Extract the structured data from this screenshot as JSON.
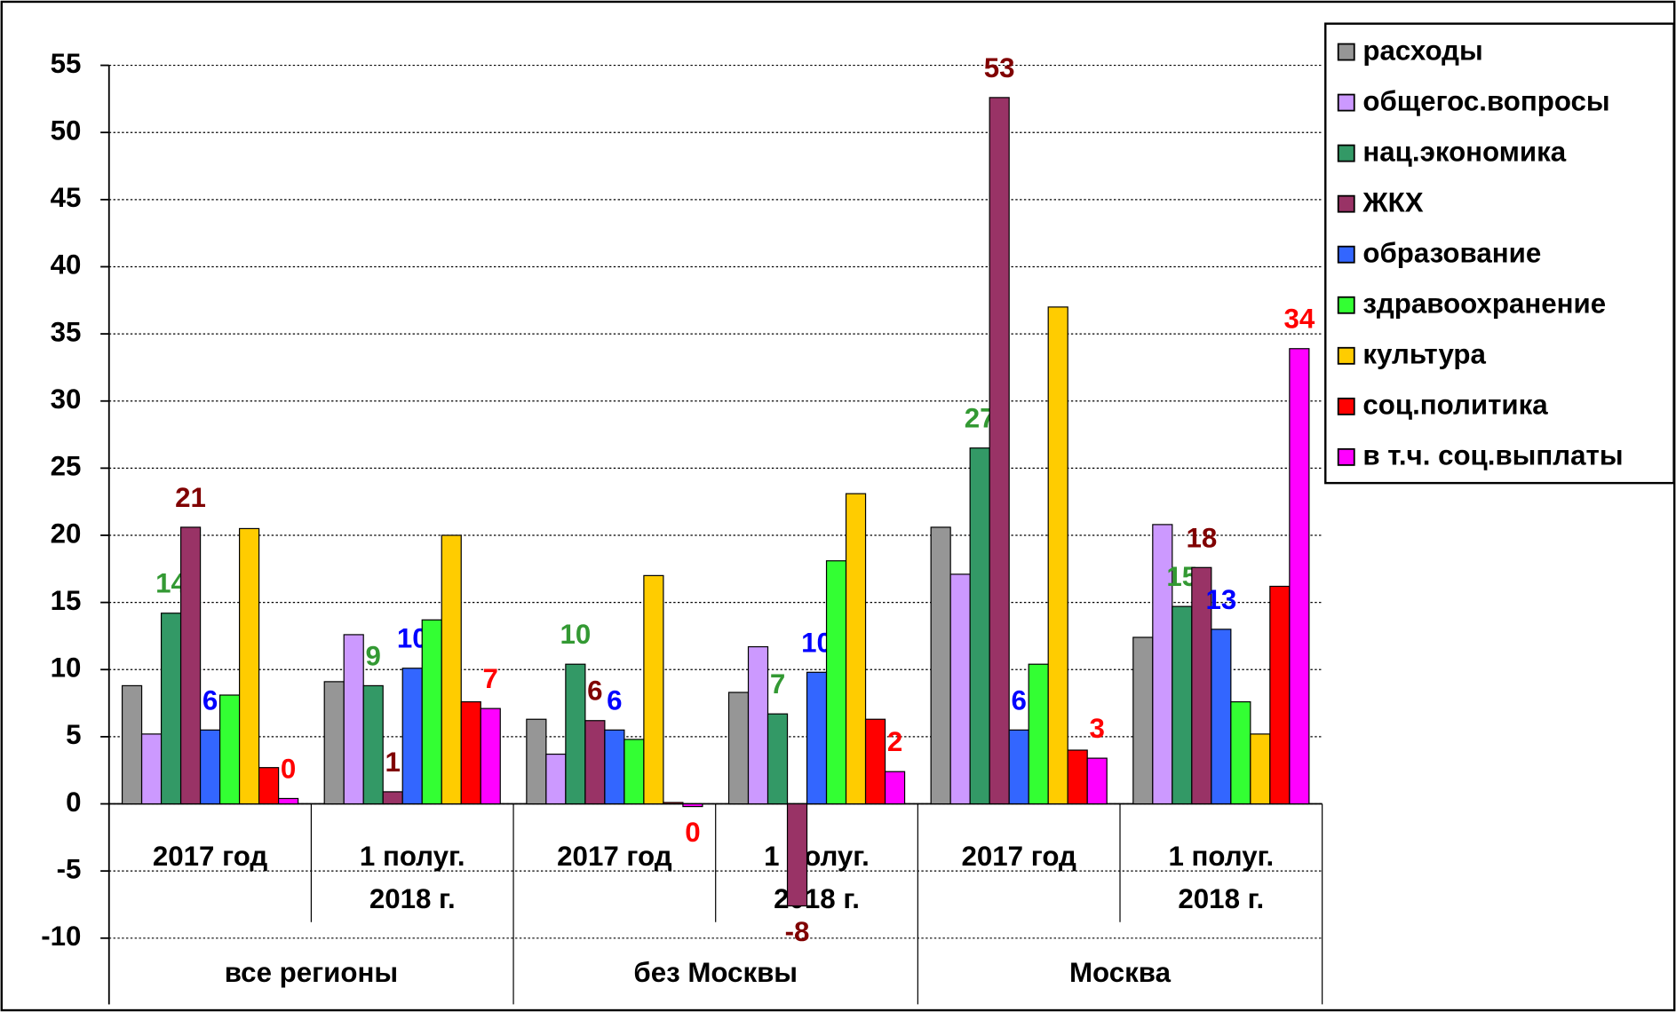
{
  "chart_data": {
    "type": "bar",
    "categories": [
      [
        "2017 год"
      ],
      [
        "1 полуг.",
        "2018 г."
      ],
      [
        "2017 год"
      ],
      [
        "1 полуг.",
        "2018 г."
      ],
      [
        "2017 год"
      ],
      [
        "1 полуг.",
        "2018 г."
      ]
    ],
    "category_groups": [
      "все регионы",
      "без Москвы",
      "Москва"
    ],
    "ylim": [
      -10,
      55
    ],
    "yticks": [
      -10,
      -5,
      0,
      5,
      10,
      15,
      20,
      25,
      30,
      35,
      40,
      45,
      50,
      55
    ],
    "grid": true,
    "legend": "right",
    "series": [
      {
        "name": "расходы",
        "color": "#969696",
        "values": [
          8.8,
          9.1,
          6.3,
          8.3,
          20.6,
          12.4
        ]
      },
      {
        "name": "общегос.вопросы",
        "color": "#cc99ff",
        "values": [
          5.2,
          12.6,
          3.7,
          11.7,
          17.1,
          20.8
        ]
      },
      {
        "name": "нац.экономика",
        "color": "#339966",
        "label_color": "#339933",
        "values": [
          14.2,
          8.8,
          10.4,
          6.7,
          26.5,
          14.7
        ],
        "value_labels": [
          "14",
          "9",
          "10",
          "7",
          "27",
          "15"
        ]
      },
      {
        "name": "ЖКХ",
        "color": "#993366",
        "label_color": "#800000",
        "values": [
          20.6,
          0.9,
          6.2,
          -7.6,
          52.6,
          17.6
        ],
        "value_labels": [
          "21",
          "1",
          "6",
          "-8",
          "53",
          "18"
        ]
      },
      {
        "name": "образование",
        "color": "#3366ff",
        "label_color": "#0000ff",
        "values": [
          5.5,
          10.1,
          5.5,
          9.8,
          5.5,
          13.0
        ],
        "value_labels": [
          "6",
          "10",
          "6",
          "10",
          "6",
          "13"
        ]
      },
      {
        "name": "здравоохранение",
        "color": "#33ff33",
        "values": [
          8.1,
          13.7,
          4.8,
          18.1,
          10.4,
          7.6
        ]
      },
      {
        "name": "культура",
        "color": "#ffcc00",
        "values": [
          20.5,
          20.0,
          17.0,
          23.1,
          37.0,
          5.2
        ]
      },
      {
        "name": "соц.политика",
        "color": "#ff0000",
        "values": [
          2.7,
          7.6,
          0.1,
          6.3,
          4.0,
          16.2
        ]
      },
      {
        "name": "в т.ч. соц.выплаты",
        "color": "#ff00ff",
        "label_color": "#ff0000",
        "values": [
          0.4,
          7.1,
          -0.2,
          2.4,
          3.4,
          33.9
        ],
        "value_labels": [
          "0",
          "7",
          "0",
          "2",
          "3",
          "34"
        ]
      }
    ]
  }
}
